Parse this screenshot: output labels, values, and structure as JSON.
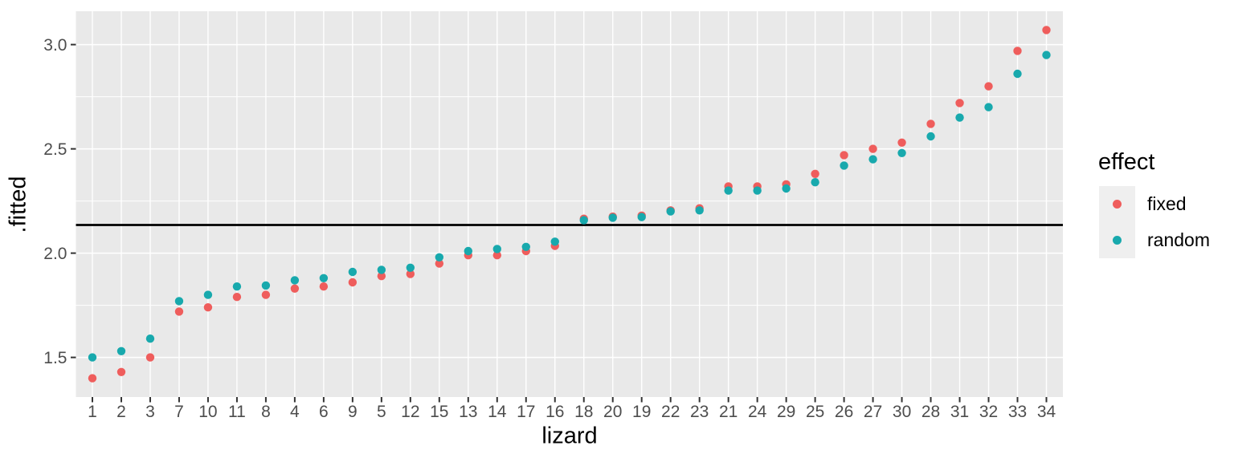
{
  "chart_data": {
    "type": "scatter",
    "title": "",
    "xlabel": "lizard",
    "ylabel": ".fitted",
    "categories": [
      "1",
      "2",
      "3",
      "7",
      "10",
      "11",
      "8",
      "4",
      "6",
      "9",
      "5",
      "12",
      "15",
      "13",
      "14",
      "17",
      "16",
      "18",
      "20",
      "19",
      "22",
      "23",
      "21",
      "24",
      "29",
      "25",
      "26",
      "27",
      "30",
      "28",
      "31",
      "32",
      "33",
      "34"
    ],
    "series": [
      {
        "name": "fixed",
        "color": "#EF5D5C",
        "values": [
          1.4,
          1.43,
          1.5,
          1.72,
          1.74,
          1.79,
          1.8,
          1.83,
          1.84,
          1.86,
          1.89,
          1.9,
          1.95,
          1.99,
          1.99,
          2.01,
          2.035,
          2.165,
          2.175,
          2.18,
          2.205,
          2.215,
          2.32,
          2.32,
          2.33,
          2.38,
          2.47,
          2.5,
          2.53,
          2.62,
          2.72,
          2.8,
          2.97,
          3.07
        ]
      },
      {
        "name": "random",
        "color": "#18A9AD",
        "values": [
          1.5,
          1.53,
          1.59,
          1.77,
          1.8,
          1.84,
          1.845,
          1.87,
          1.88,
          1.91,
          1.92,
          1.93,
          1.98,
          2.01,
          2.02,
          2.03,
          2.055,
          2.158,
          2.17,
          2.173,
          2.2,
          2.205,
          2.3,
          2.3,
          2.31,
          2.34,
          2.42,
          2.45,
          2.48,
          2.56,
          2.65,
          2.7,
          2.86,
          2.95
        ]
      }
    ],
    "yticks": [
      1.5,
      2.0,
      2.5,
      3.0
    ],
    "ytick_labels": [
      "1.5",
      "2.0",
      "2.5",
      "3.0"
    ],
    "minor_yticks": [
      1.75,
      2.25,
      2.75
    ],
    "ylim": [
      1.31,
      3.16
    ],
    "hline": 2.135,
    "grid": true,
    "legend": {
      "title": "effect",
      "position": "right",
      "items": [
        {
          "label": "fixed"
        },
        {
          "label": "random"
        }
      ]
    },
    "colors": {
      "panel_bg": "#E9E9E9",
      "gridline": "#FFFFFF",
      "tick_text": "#4D4D4D",
      "tick_mark": "#333333",
      "hline": "#000000",
      "legend_key_bg": "#EFEFEF"
    }
  }
}
